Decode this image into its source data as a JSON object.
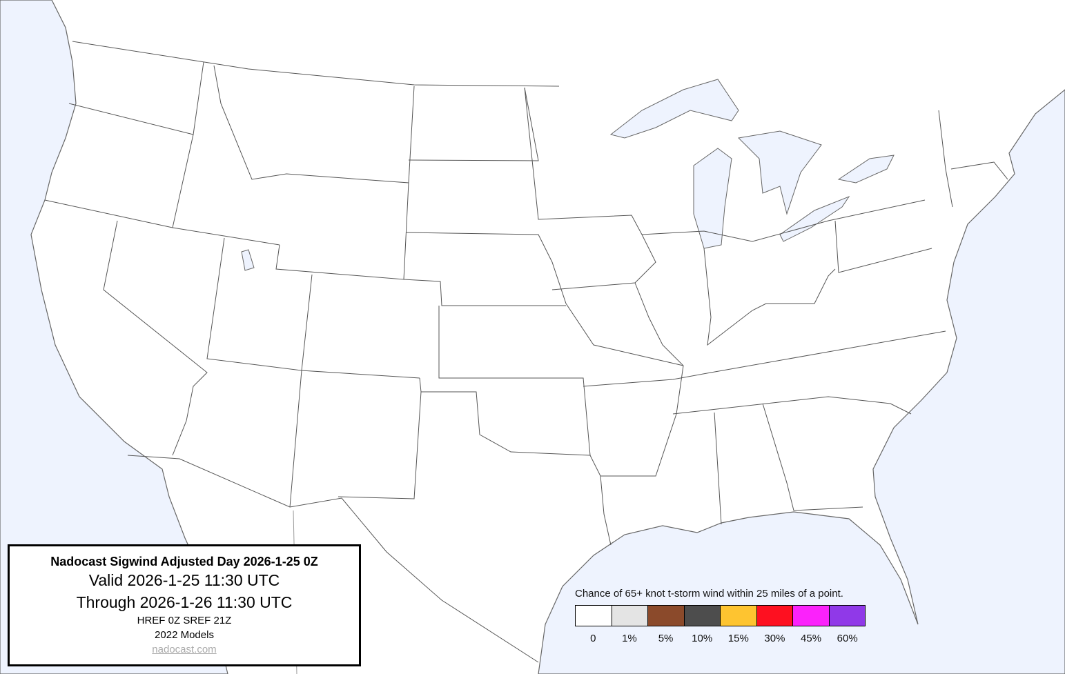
{
  "title_box": {
    "title": "Nadocast Sigwind Adjusted Day 2026-1-25 0Z",
    "valid": "Valid 2026-1-25 11:30 UTC",
    "through": "Through 2026-1-26 11:30 UTC",
    "models": "HREF 0Z SREF 21Z",
    "model_year": "2022 Models",
    "link": "nadocast.com"
  },
  "legend": {
    "caption": "Chance of 65+ knot t-storm wind within 25 miles of a point.",
    "bins": [
      {
        "label": "0",
        "color": "#ffffff"
      },
      {
        "label": "1%",
        "color": "#e4e4e4"
      },
      {
        "label": "5%",
        "color": "#8b4a2b"
      },
      {
        "label": "10%",
        "color": "#4d4d4d"
      },
      {
        "label": "15%",
        "color": "#fec430"
      },
      {
        "label": "30%",
        "color": "#fe1020"
      },
      {
        "label": "45%",
        "color": "#fb22fb"
      },
      {
        "label": "60%",
        "color": "#9039e8"
      }
    ]
  },
  "map": {
    "land_color": "#ffffff",
    "water_color": "#eef3fe",
    "forecast_areas": []
  }
}
